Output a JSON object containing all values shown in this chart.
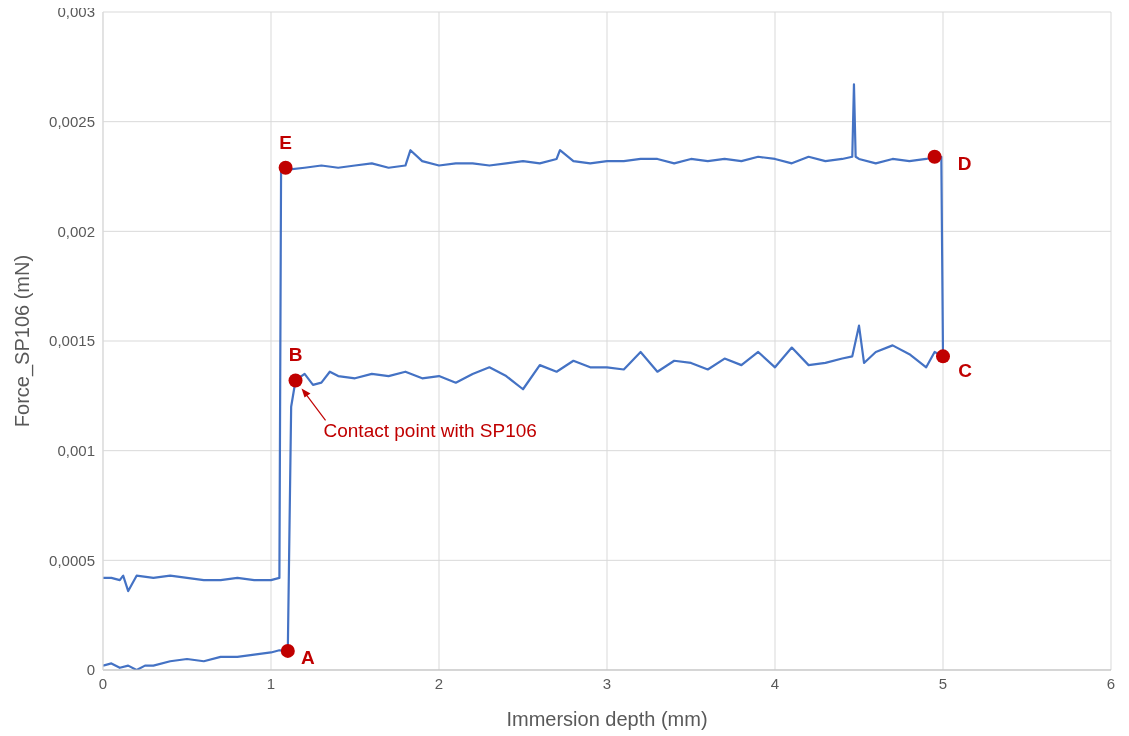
{
  "chart_data": {
    "type": "line",
    "xlabel": "Immersion depth (mm)",
    "ylabel": "Force_SP106 (mN)",
    "series": [
      {
        "color": "#4472c4",
        "x": [
          0,
          0.05,
          0.1,
          0.15,
          0.2,
          0.25,
          0.3,
          0.4,
          0.5,
          0.6,
          0.7,
          0.8,
          0.9,
          1.0,
          1.05,
          1.1,
          1.12,
          1.146,
          1.2,
          1.25,
          1.3,
          1.35,
          1.4,
          1.5,
          1.6,
          1.7,
          1.8,
          1.9,
          2.0,
          2.1,
          2.2,
          2.3,
          2.4,
          2.5,
          2.6,
          2.7,
          2.8,
          2.9,
          3.0,
          3.1,
          3.2,
          3.3,
          3.4,
          3.5,
          3.6,
          3.7,
          3.8,
          3.9,
          4.0,
          4.1,
          4.2,
          4.3,
          4.4,
          4.46,
          4.5,
          4.53,
          4.6,
          4.7,
          4.8,
          4.9,
          4.95,
          5.0,
          4.99,
          4.95,
          4.9,
          4.8,
          4.7,
          4.6,
          4.5,
          4.48,
          4.47,
          4.46,
          4.4,
          4.3,
          4.2,
          4.1,
          4.0,
          3.9,
          3.8,
          3.7,
          3.6,
          3.5,
          3.4,
          3.3,
          3.2,
          3.1,
          3.0,
          2.9,
          2.8,
          2.72,
          2.7,
          2.6,
          2.5,
          2.4,
          2.3,
          2.2,
          2.1,
          2.0,
          1.9,
          1.83,
          1.8,
          1.7,
          1.6,
          1.5,
          1.4,
          1.3,
          1.2,
          1.087,
          1.06,
          1.05,
          1.0,
          0.9,
          0.8,
          0.7,
          0.6,
          0.5,
          0.4,
          0.3,
          0.2,
          0.15,
          0.12,
          0.1,
          0.05,
          0
        ],
        "values": [
          2e-05,
          3e-05,
          1e-05,
          2e-05,
          0.0,
          2e-05,
          2e-05,
          4e-05,
          5e-05,
          4e-05,
          6e-05,
          6e-05,
          7e-05,
          8e-05,
          9e-05,
          8.7e-05,
          0.0012,
          0.00132,
          0.00135,
          0.0013,
          0.00131,
          0.00136,
          0.00134,
          0.00133,
          0.00135,
          0.00134,
          0.00136,
          0.00133,
          0.00134,
          0.00131,
          0.00135,
          0.00138,
          0.00134,
          0.00128,
          0.00139,
          0.00136,
          0.00141,
          0.00138,
          0.00138,
          0.00137,
          0.00145,
          0.00136,
          0.00141,
          0.0014,
          0.00137,
          0.00142,
          0.00139,
          0.00145,
          0.00138,
          0.00147,
          0.00139,
          0.0014,
          0.00142,
          0.00143,
          0.00157,
          0.0014,
          0.00145,
          0.00148,
          0.00144,
          0.00138,
          0.00145,
          0.00143,
          0.00234,
          0.00234,
          0.00233,
          0.00232,
          0.00233,
          0.00231,
          0.00233,
          0.00234,
          0.00267,
          0.00234,
          0.00233,
          0.00232,
          0.00234,
          0.00231,
          0.00233,
          0.00234,
          0.00232,
          0.00233,
          0.00232,
          0.00233,
          0.00231,
          0.00233,
          0.00233,
          0.00232,
          0.00232,
          0.00231,
          0.00232,
          0.00237,
          0.00233,
          0.00231,
          0.00232,
          0.00231,
          0.0023,
          0.00231,
          0.00231,
          0.0023,
          0.00232,
          0.00237,
          0.0023,
          0.00229,
          0.00231,
          0.0023,
          0.00229,
          0.0023,
          0.00229,
          0.00228,
          0.00229,
          0.00042,
          0.00041,
          0.00041,
          0.00042,
          0.00041,
          0.00041,
          0.00042,
          0.00043,
          0.00042,
          0.00043,
          0.00036,
          0.00043,
          0.00041,
          0.00042,
          0.00042
        ]
      }
    ],
    "xlim": [
      0,
      6
    ],
    "xticks": [
      0,
      1,
      2,
      3,
      4,
      5,
      6
    ],
    "ylim": [
      0,
      0.003
    ],
    "yticks": [
      0,
      {
        "value": 0.0005,
        "label": "0,0005"
      },
      {
        "value": 0.001,
        "label": "0,001"
      },
      {
        "value": 0.0015,
        "label": "0,0015"
      },
      {
        "value": 0.002,
        "label": "0,002"
      },
      {
        "value": 0.0025,
        "label": "0,0025"
      },
      {
        "value": 0.003,
        "label": "0,003"
      }
    ],
    "grid": true,
    "legend": false,
    "marker": "none",
    "line_style": "solid",
    "annotations": [
      {
        "text": "A",
        "x": 1.1,
        "y": 8.7e-05
      },
      {
        "text": "B",
        "x": 1.146,
        "y": 0.00132
      },
      {
        "text": "C",
        "x": 5.0,
        "y": 0.00143
      },
      {
        "text": "D",
        "x": 4.95,
        "y": 0.00234
      },
      {
        "text": "E",
        "x": 1.087,
        "y": 0.00229
      },
      {
        "text": "Contact point with SP106",
        "x": 1.146,
        "y": 0.00132
      }
    ]
  }
}
